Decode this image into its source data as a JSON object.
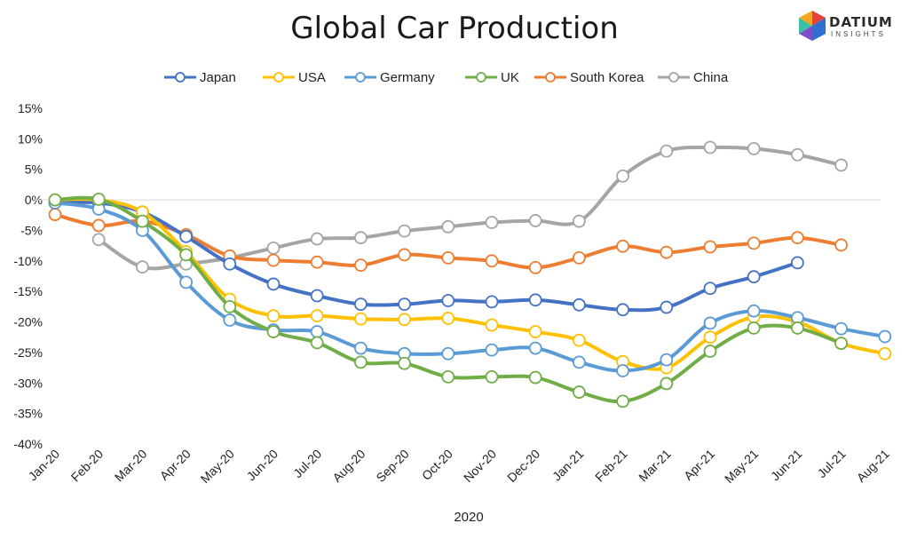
{
  "chart_data": {
    "type": "line",
    "title": "Global Car Production",
    "xlabel": "2020",
    "ylabel": "",
    "ylim": [
      -40,
      15
    ],
    "y_ticks": [
      "15%",
      "10%",
      "5%",
      "0%",
      "-5%",
      "-10%",
      "-15%",
      "-20%",
      "-25%",
      "-30%",
      "-35%",
      "-40%"
    ],
    "y_tick_values": [
      15,
      10,
      5,
      0,
      -5,
      -10,
      -15,
      -20,
      -25,
      -30,
      -35,
      -40
    ],
    "categories": [
      "Jan-20",
      "Feb-20",
      "Mar-20",
      "Apr-20",
      "May-20",
      "Jun-20",
      "Jul-20",
      "Aug-20",
      "Sep-20",
      "Oct-20",
      "Nov-20",
      "Dec-20",
      "Jan-21",
      "Feb-21",
      "Mar-21",
      "Apr-21",
      "May-21",
      "Jun-21",
      "Jul-21",
      "Aug-21"
    ],
    "grid": false,
    "legend_position": "top",
    "series": [
      {
        "name": "Japan",
        "color": "#4472C4",
        "values": [
          -0.5,
          -0.5,
          -2,
          -6,
          -10.5,
          -13.8,
          -15.7,
          -17.1,
          -17.1,
          -16.5,
          -16.7,
          -16.4,
          -17.2,
          -18,
          -17.6,
          -14.5,
          -12.6,
          -10.3,
          null,
          null
        ]
      },
      {
        "name": "USA",
        "color": "#FFC000",
        "values": [
          0,
          0,
          -2,
          -8.5,
          -16.3,
          -19,
          -19,
          -19.5,
          -19.6,
          -19.4,
          -20.5,
          -21.6,
          -23,
          -26.5,
          -27.5,
          -22.5,
          -19.2,
          -20,
          -23.5,
          -25.2
        ]
      },
      {
        "name": "Germany",
        "color": "#5B9BD5",
        "values": [
          -0.5,
          -1.5,
          -5,
          -13.5,
          -19.7,
          -21.3,
          -21.6,
          -24.3,
          -25.2,
          -25.2,
          -24.6,
          -24.3,
          -26.6,
          -28,
          -26.2,
          -20.2,
          -18.2,
          -19.3,
          -21.1,
          -22.4
        ]
      },
      {
        "name": "UK",
        "color": "#70AD47",
        "values": [
          0,
          0.1,
          -3.5,
          -9,
          -17.5,
          -21.6,
          -23.4,
          -26.6,
          -26.8,
          -29,
          -29,
          -29.1,
          -31.5,
          -33,
          -30.1,
          -24.8,
          -21,
          -21,
          -23.5,
          null
        ]
      },
      {
        "name": "South Korea",
        "color": "#ED7D31",
        "values": [
          -2.4,
          -4.2,
          -3.5,
          -5.7,
          -9.2,
          -9.9,
          -10.2,
          -10.7,
          -9,
          -9.5,
          -10,
          -11.1,
          -9.5,
          -7.6,
          -8.6,
          -7.7,
          -7.1,
          -6.2,
          -7.4,
          null
        ]
      },
      {
        "name": "China",
        "color": "#A5A5A5",
        "values": [
          null,
          -6.5,
          -11,
          -10.5,
          -9.5,
          -7.9,
          -6.4,
          -6.2,
          -5.1,
          -4.4,
          -3.7,
          -3.4,
          -3.5,
          3.9,
          8,
          8.6,
          8.4,
          7.4,
          5.7,
          null
        ]
      }
    ]
  },
  "branding": {
    "logo_word": "DATIUM",
    "logo_sub": "INSIGHTS",
    "logo_colors": [
      "#E8403A",
      "#F5A623",
      "#3DBFA3",
      "#2E6FD1",
      "#7B4FC9"
    ]
  }
}
